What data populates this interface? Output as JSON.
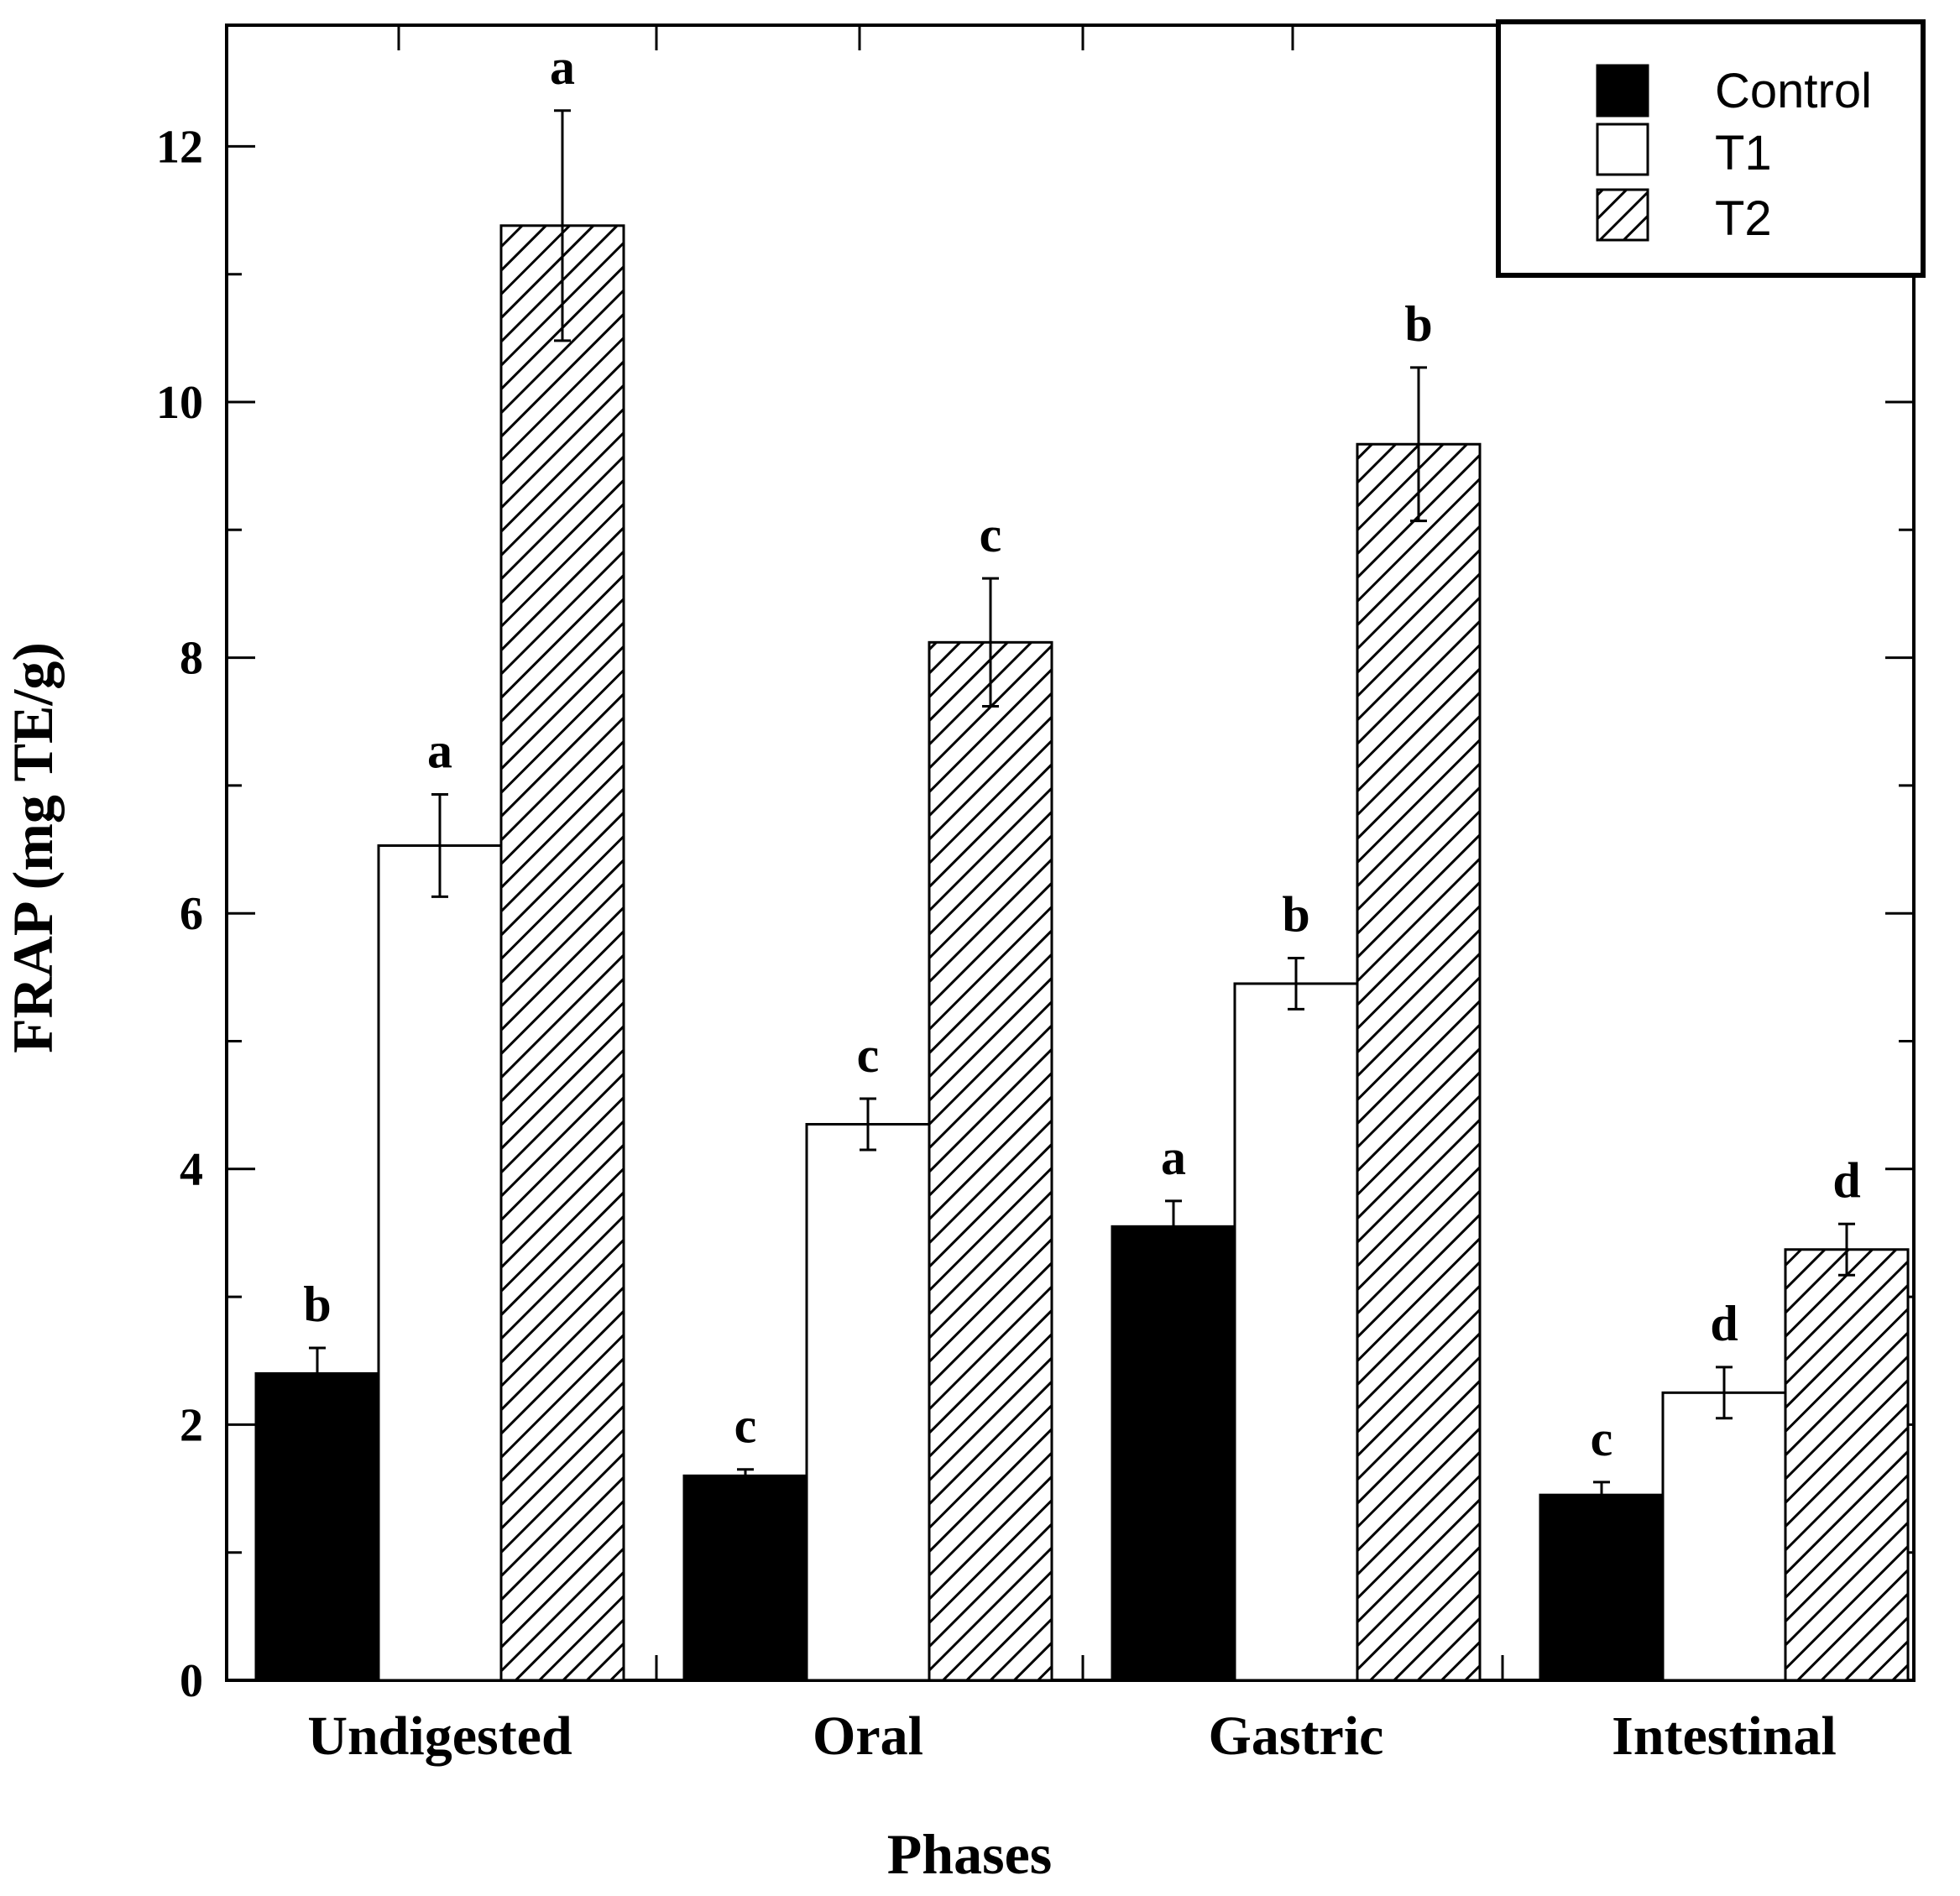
{
  "chart_data": {
    "type": "bar",
    "title": "",
    "xlabel": "Phases",
    "ylabel": "FRAP (mg TE/g)",
    "ylim": [
      0,
      13
    ],
    "yticks": [
      0,
      2,
      4,
      6,
      8,
      10,
      12
    ],
    "grid": false,
    "legend_position": "top-right",
    "categories": [
      "Undigested",
      "Oral",
      "Gastric",
      "Intestinal"
    ],
    "series": [
      {
        "name": "Control",
        "fill": "solid",
        "values": [
          2.4,
          1.6,
          3.55,
          1.45
        ],
        "errors": [
          0.2,
          0.05,
          0.2,
          0.1
        ],
        "letters": [
          "b",
          "c",
          "a",
          "c"
        ]
      },
      {
        "name": "T1",
        "fill": "white",
        "values": [
          6.53,
          4.35,
          5.45,
          2.25
        ],
        "errors": [
          0.4,
          0.2,
          0.2,
          0.2
        ],
        "letters": [
          "a",
          "c",
          "b",
          "d"
        ]
      },
      {
        "name": "T2",
        "fill": "hatched",
        "values": [
          11.38,
          8.12,
          9.67,
          3.37
        ],
        "errors": [
          0.9,
          0.5,
          0.6,
          0.2
        ],
        "letters": [
          "a",
          "c",
          "b",
          "d"
        ]
      }
    ]
  },
  "colors": {
    "ink": "#000000",
    "background": "#ffffff"
  }
}
